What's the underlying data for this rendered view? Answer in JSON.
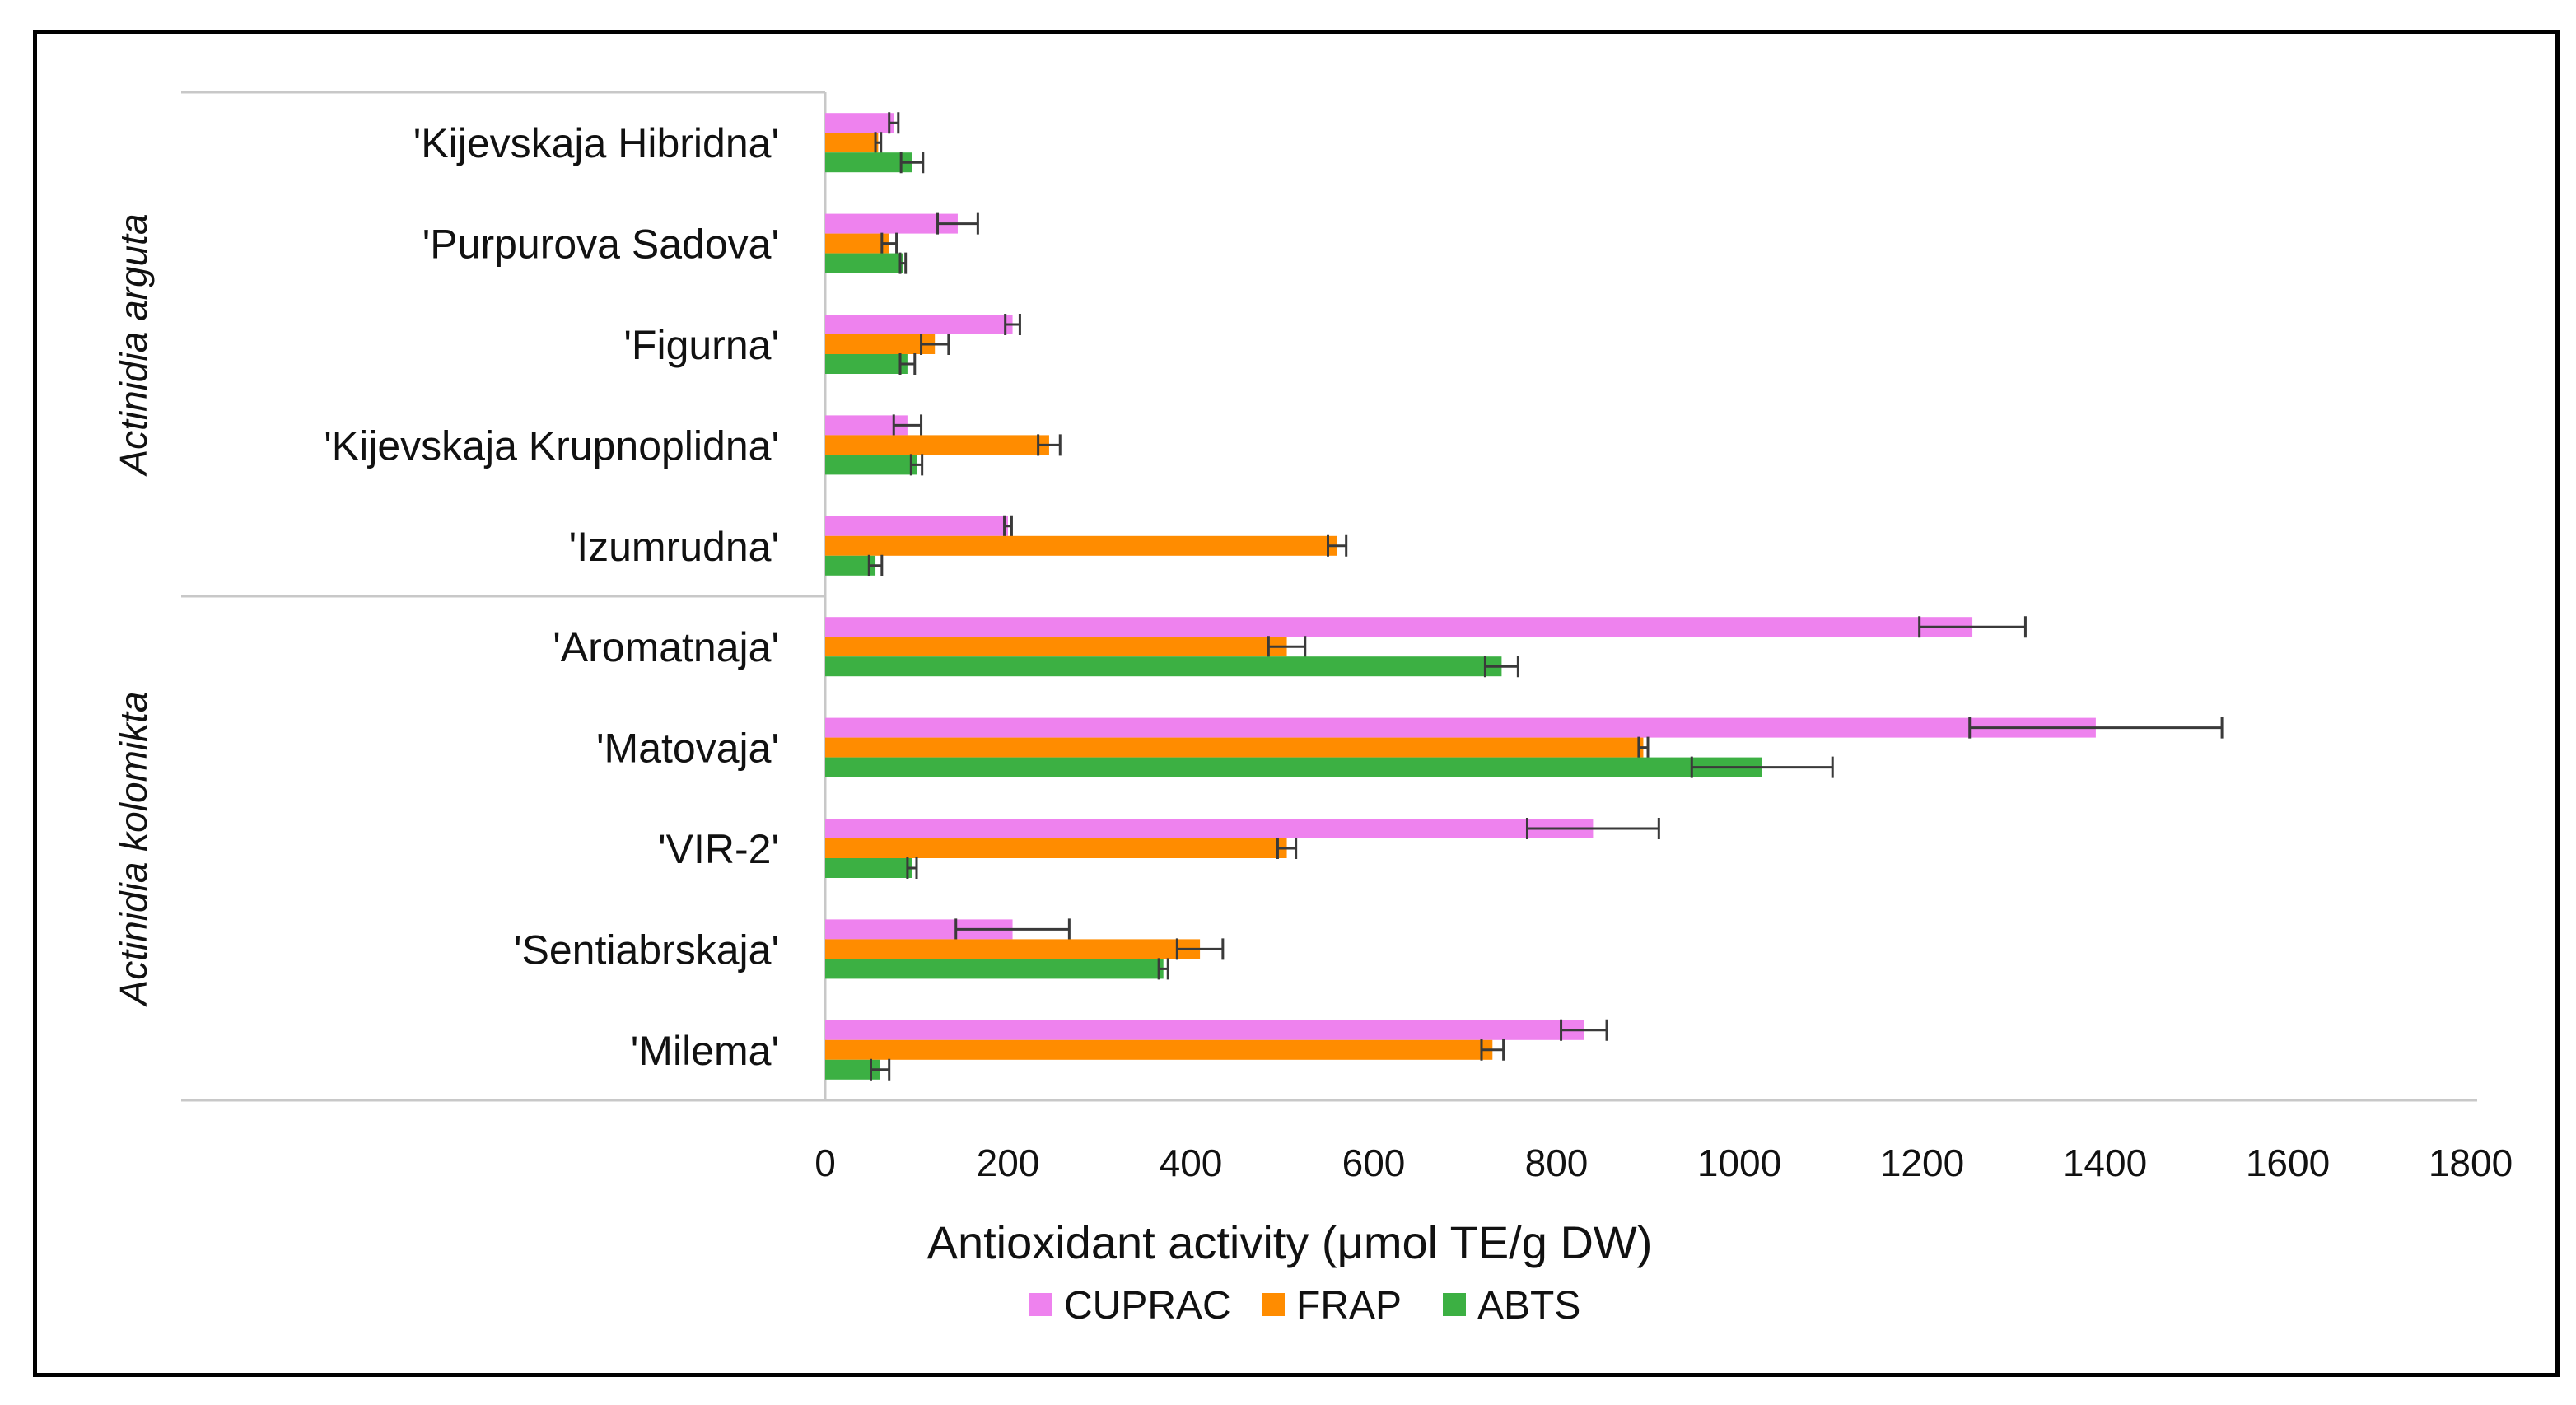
{
  "chart_data": {
    "type": "bar",
    "orientation": "horizontal",
    "title": "",
    "xlabel": "Antioxidant activity (μmol TE/g DW)",
    "ylabel": "",
    "xlim": [
      0,
      1800
    ],
    "xticks": [
      0,
      200,
      400,
      600,
      800,
      1000,
      1200,
      1400,
      1600,
      1800
    ],
    "grid": false,
    "legend_position": "bottom",
    "categories": [
      "'Kijevskaja Hibridna'",
      "'Purpurova Sadova'",
      "'Figurna'",
      "'Kijevskaja Krupnoplidna'",
      "'Izumrudna'",
      "'Aromatnaja'",
      "'Matovaja'",
      "'VIR-2'",
      "'Sentiabrskaja'",
      "'Milema'"
    ],
    "groups": [
      {
        "name": "Actinidia arguta",
        "categories": [
          "'Kijevskaja Hibridna'",
          "'Purpurova Sadova'",
          "'Figurna'",
          "'Kijevskaja Krupnoplidna'",
          "'Izumrudna'"
        ]
      },
      {
        "name": "Actinidia kolomikta",
        "categories": [
          "'Aromatnaja'",
          "'Matovaja'",
          "'VIR-2'",
          "'Sentiabrskaja'",
          "'Milema'"
        ]
      }
    ],
    "series": [
      {
        "name": "CUPRAC",
        "color": "#ee82ee",
        "values": [
          75,
          145,
          205,
          90,
          200,
          1255,
          1390,
          840,
          205,
          830
        ],
        "errors": [
          5,
          22,
          8,
          15,
          4,
          58,
          138,
          72,
          62,
          25
        ]
      },
      {
        "name": "FRAP",
        "color": "#ff8c00",
        "values": [
          58,
          70,
          120,
          245,
          560,
          505,
          895,
          505,
          410,
          730
        ],
        "errors": [
          3,
          8,
          15,
          12,
          10,
          20,
          5,
          10,
          25,
          12
        ]
      },
      {
        "name": "ABTS",
        "color": "#3cb043",
        "values": [
          95,
          85,
          90,
          100,
          55,
          740,
          1025,
          95,
          370,
          60
        ],
        "errors": [
          12,
          3,
          8,
          6,
          7,
          18,
          77,
          5,
          5,
          10
        ]
      }
    ]
  }
}
